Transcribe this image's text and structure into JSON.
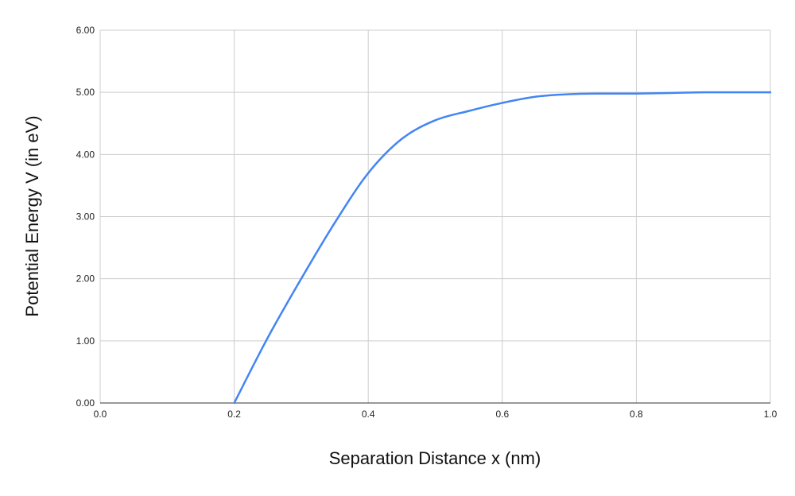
{
  "chart_data": {
    "type": "line",
    "title": "",
    "xlabel": "Separation Distance x (nm)",
    "ylabel": "Potential Energy V (in eV)",
    "xlim": [
      0,
      1
    ],
    "ylim": [
      0,
      6
    ],
    "x_ticks": [
      "0.0",
      "0.2",
      "0.4",
      "0.6",
      "0.8",
      "1.0"
    ],
    "y_ticks": [
      "0.00",
      "1.00",
      "2.00",
      "3.00",
      "4.00",
      "5.00",
      "6.00"
    ],
    "grid": true,
    "legend": "none",
    "series": [
      {
        "color": "#4285f4",
        "x": [
          0.2,
          0.25,
          0.3,
          0.35,
          0.4,
          0.45,
          0.5,
          0.55,
          0.6,
          0.65,
          0.7,
          0.75,
          0.8,
          0.85,
          0.9,
          0.95,
          1.0
        ],
        "y": [
          0.0,
          1.05,
          2.0,
          2.9,
          3.7,
          4.25,
          4.55,
          4.7,
          4.83,
          4.93,
          4.97,
          4.98,
          4.98,
          4.99,
          5.0,
          5.0,
          5.0
        ]
      }
    ]
  }
}
